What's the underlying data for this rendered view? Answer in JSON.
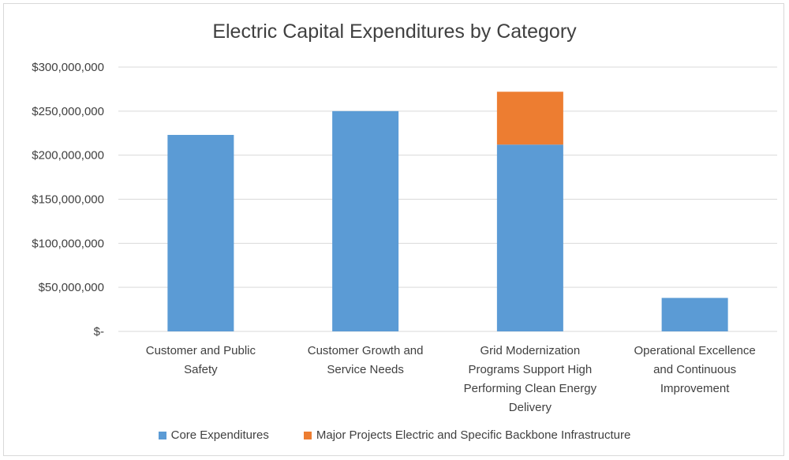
{
  "chart_data": {
    "type": "bar",
    "stacked": true,
    "title": "Electric Capital Expenditures by Category",
    "xlabel": "",
    "ylabel": "",
    "ylim": [
      0,
      300000000
    ],
    "yticks": [
      {
        "value": 0,
        "label": "$-"
      },
      {
        "value": 50000000,
        "label": "$50,000,000"
      },
      {
        "value": 100000000,
        "label": "$100,000,000"
      },
      {
        "value": 150000000,
        "label": "$150,000,000"
      },
      {
        "value": 200000000,
        "label": "$200,000,000"
      },
      {
        "value": 250000000,
        "label": "$250,000,000"
      },
      {
        "value": 300000000,
        "label": "$300,000,000"
      }
    ],
    "categories": [
      [
        "Customer and Public",
        "Safety"
      ],
      [
        "Customer Growth and",
        "Service Needs"
      ],
      [
        "Grid Modernization",
        "Programs Support High",
        "Performing Clean Energy",
        "Delivery"
      ],
      [
        "Operational Excellence",
        "and Continuous",
        "Improvement"
      ]
    ],
    "series": [
      {
        "name": "Core Expenditures",
        "color": "#5b9bd5",
        "values": [
          223000000,
          250000000,
          212000000,
          38000000
        ]
      },
      {
        "name": "Major Projects Electric and Specific Backbone Infrastructure",
        "color": "#ed7d31",
        "values": [
          0,
          0,
          60000000,
          0
        ]
      }
    ],
    "grid": true,
    "legend_position": "bottom"
  }
}
